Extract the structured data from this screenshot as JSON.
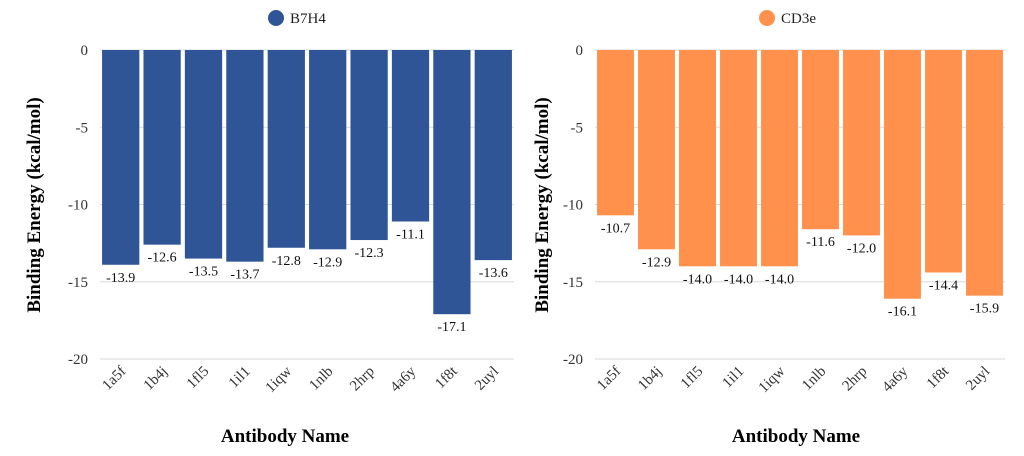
{
  "chart_data": [
    {
      "type": "bar",
      "title": "",
      "xlabel": "Antibody Name",
      "ylabel": "Binding Energy (kcal/mol)",
      "ylim": [
        -20,
        0
      ],
      "yticks": [
        "0",
        "-5",
        "-10",
        "-15",
        "-20"
      ],
      "grid": true,
      "legend_position": "top-center",
      "categories": [
        "1a5f",
        "1b4j",
        "1fl5",
        "1il1",
        "1iqw",
        "1nlb",
        "2hrp",
        "4a6y",
        "1f8t",
        "2uyl"
      ],
      "series": [
        {
          "name": "B7H4",
          "color": "#2F5597",
          "values": [
            -13.9,
            -12.6,
            -13.5,
            -13.7,
            -12.8,
            -12.9,
            -12.3,
            -11.1,
            -17.1,
            -13.6
          ],
          "labels": [
            "-13.9",
            "-12.6",
            "-13.5",
            "-13.7",
            "-12.8",
            "-12.9",
            "-12.3",
            "-11.1",
            "-17.1",
            "-13.6"
          ]
        }
      ]
    },
    {
      "type": "bar",
      "title": "",
      "xlabel": "Antibody Name",
      "ylabel": "Binding Energy (kcal/mol)",
      "ylim": [
        -20,
        0
      ],
      "yticks": [
        "0",
        "-5",
        "-10",
        "-15",
        "-20"
      ],
      "grid": true,
      "legend_position": "top-center",
      "categories": [
        "1a5f",
        "1b4j",
        "1fl5",
        "1il1",
        "1iqw",
        "1nlb",
        "2hrp",
        "4a6y",
        "1f8t",
        "2uyl"
      ],
      "series": [
        {
          "name": "CD3e",
          "color": "#FF914D",
          "values": [
            -10.7,
            -12.9,
            -14.0,
            -14.0,
            -14.0,
            -11.6,
            -12.0,
            -16.1,
            -14.4,
            -15.9
          ],
          "labels": [
            "-10.7",
            "-12.9",
            "-14.0",
            "-14.0",
            "-14.0",
            "-11.6",
            "-12.0",
            "-16.1",
            "-14.4",
            "-15.9"
          ]
        }
      ]
    }
  ]
}
